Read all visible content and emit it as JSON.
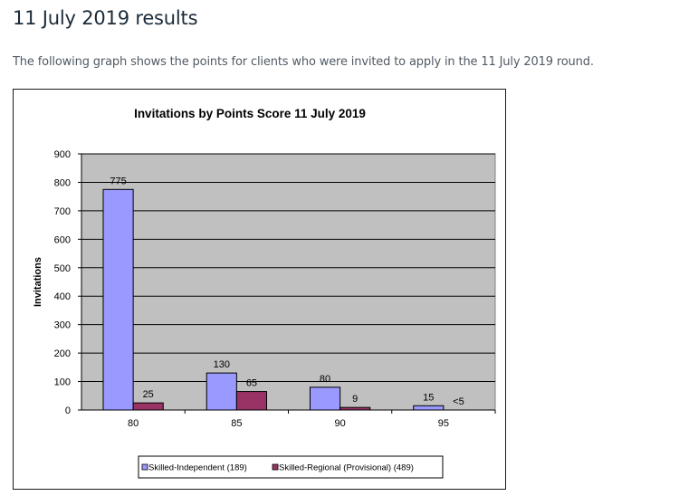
{
  "page": {
    "heading": "11 July 2019 results",
    "intro": "The following graph shows the points for clients who were invited to apply in the 11 July 2019 round."
  },
  "colors": {
    "plot_background": "#c0c0c0",
    "series_1": "#9999ff",
    "series_2": "#993366",
    "gridline": "#000000"
  },
  "chart_data": {
    "type": "bar",
    "title": "Invitations by Points Score 11 July 2019",
    "xlabel": "",
    "ylabel": "Invitations",
    "categories": [
      "80",
      "85",
      "90",
      "95"
    ],
    "ylim": [
      0,
      900
    ],
    "yticks": [
      0,
      100,
      200,
      300,
      400,
      500,
      600,
      700,
      800,
      900
    ],
    "grid": true,
    "legend_position": "bottom",
    "series": [
      {
        "name": "Skilled-Independent (189)",
        "values": [
          775,
          130,
          80,
          15
        ],
        "labels": [
          "775",
          "130",
          "80",
          "15"
        ]
      },
      {
        "name": "Skilled-Regional (Provisional) (489)",
        "values": [
          25,
          65,
          9,
          0
        ],
        "labels": [
          "25",
          "65",
          "9",
          "<5"
        ]
      }
    ]
  }
}
